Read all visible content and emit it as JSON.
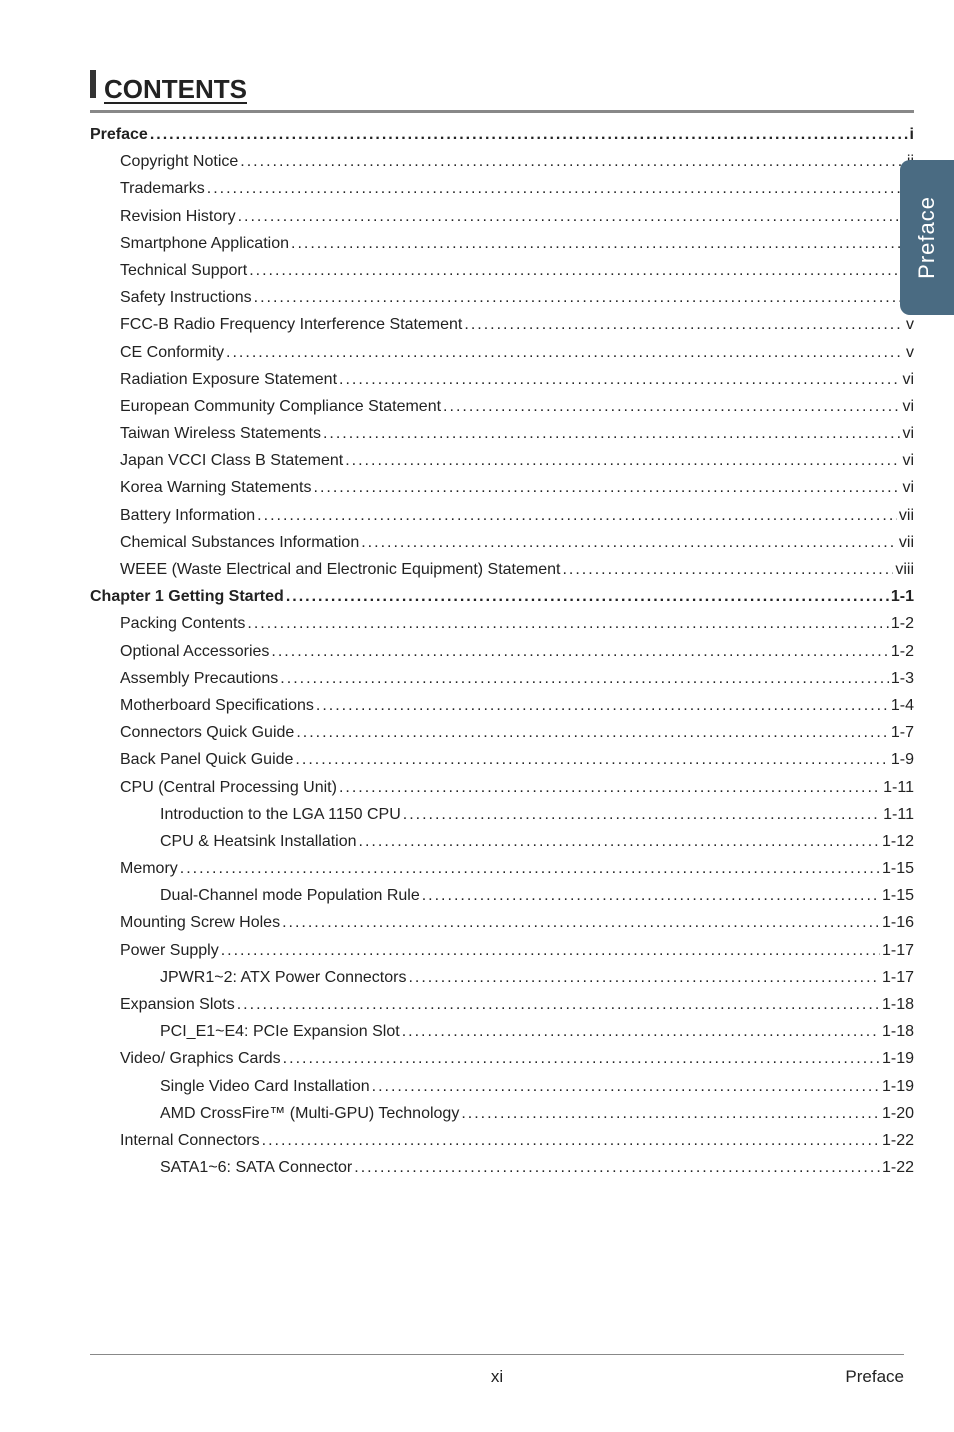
{
  "sidebar_label": "Preface",
  "contents_title": "CONTENTS",
  "toc": [
    {
      "level": 0,
      "label": "Preface",
      "page": "i"
    },
    {
      "level": 1,
      "label": "Copyright Notice",
      "page": "ii"
    },
    {
      "level": 1,
      "label": "Trademarks",
      "page": "ii"
    },
    {
      "level": 1,
      "label": "Revision History",
      "page": "ii"
    },
    {
      "level": 1,
      "label": "Smartphone Application",
      "page": "iii"
    },
    {
      "level": 1,
      "label": "Technical Support",
      "page": "iii"
    },
    {
      "level": 1,
      "label": "Safety Instructions",
      "page": "iv"
    },
    {
      "level": 1,
      "label": "FCC-B Radio Frequency Interference Statement",
      "page": "v"
    },
    {
      "level": 1,
      "label": "CE Conformity",
      "page": "v"
    },
    {
      "level": 1,
      "label": "Radiation Exposure Statement",
      "page": "vi"
    },
    {
      "level": 1,
      "label": "European Community Compliance Statement",
      "page": "vi"
    },
    {
      "level": 1,
      "label": "Taiwan Wireless Statements",
      "page": "vi"
    },
    {
      "level": 1,
      "label": "Japan VCCI Class B Statement",
      "page": "vi"
    },
    {
      "level": 1,
      "label": "Korea Warning Statements",
      "page": "vi"
    },
    {
      "level": 1,
      "label": "Battery Information",
      "page": "vii"
    },
    {
      "level": 1,
      "label": "Chemical Substances Information",
      "page": "vii"
    },
    {
      "level": 1,
      "label": "WEEE (Waste Electrical and Electronic Equipment) Statement",
      "page": "viii"
    },
    {
      "level": 0,
      "label": "Chapter 1 Getting Started",
      "page": "1-1"
    },
    {
      "level": 1,
      "label": "Packing Contents",
      "page": "1-2"
    },
    {
      "level": 1,
      "label": "Optional Accessories",
      "page": "1-2"
    },
    {
      "level": 1,
      "label": "Assembly Precautions",
      "page": "1-3"
    },
    {
      "level": 1,
      "label": "Motherboard Specifications",
      "page": "1-4"
    },
    {
      "level": 1,
      "label": "Connectors Quick Guide",
      "page": "1-7"
    },
    {
      "level": 1,
      "label": "Back Panel Quick Guide",
      "page": "1-9"
    },
    {
      "level": 1,
      "label": "CPU (Central Processing Unit)",
      "page": "1-11"
    },
    {
      "level": 2,
      "label": "Introduction to the LGA 1150 CPU",
      "page": "1-11"
    },
    {
      "level": 2,
      "label": "CPU & Heatsink Installation",
      "page": "1-12"
    },
    {
      "level": 1,
      "label": "Memory",
      "page": "1-15"
    },
    {
      "level": 2,
      "label": "Dual-Channel mode Population Rule",
      "page": "1-15"
    },
    {
      "level": 1,
      "label": "Mounting Screw Holes",
      "page": "1-16"
    },
    {
      "level": 1,
      "label": "Power Supply",
      "page": "1-17"
    },
    {
      "level": 2,
      "label": "JPWR1~2: ATX Power Connectors",
      "page": "1-17"
    },
    {
      "level": 1,
      "label": "Expansion Slots",
      "page": "1-18"
    },
    {
      "level": 2,
      "label": "PCI_E1~E4: PCIe Expansion Slot",
      "page": "1-18"
    },
    {
      "level": 1,
      "label": "Video/ Graphics Cards",
      "page": "1-19"
    },
    {
      "level": 2,
      "label": "Single Video Card Installation",
      "page": "1-19"
    },
    {
      "level": 2,
      "label": "AMD CrossFire™ (Multi-GPU) Technology",
      "page": "1-20"
    },
    {
      "level": 1,
      "label": "Internal Connectors",
      "page": "1-22"
    },
    {
      "level": 2,
      "label": "SATA1~6: SATA Connector",
      "page": "1-22"
    }
  ],
  "footer": {
    "page_number": "xi",
    "section": "Preface"
  },
  "colors": {
    "sidebar_bg": "#4a6b82",
    "sidebar_text": "#ffffff",
    "text": "#222222",
    "rule": "#888888"
  }
}
